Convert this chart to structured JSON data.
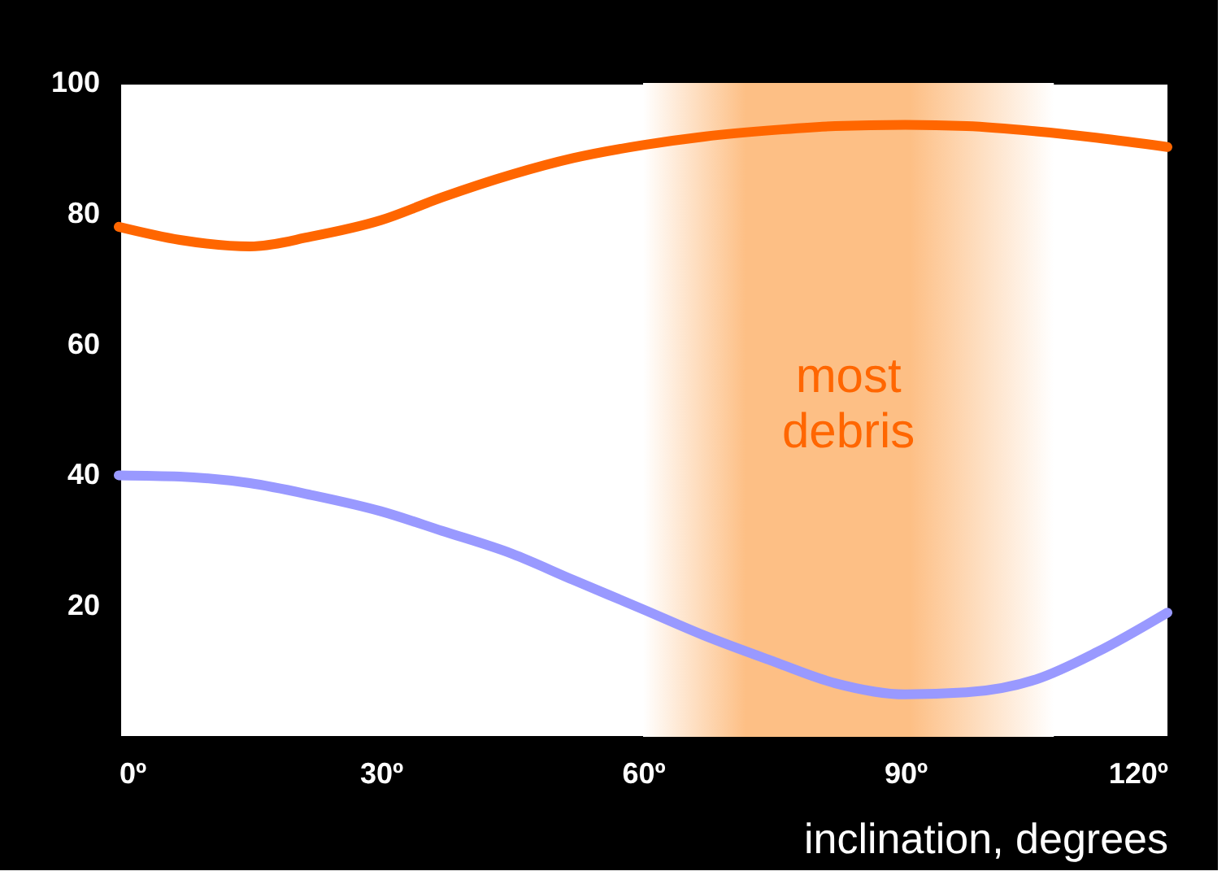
{
  "chart_data": {
    "type": "line",
    "xlabel": "inclination, degrees",
    "x": [
      0,
      7,
      15,
      22,
      30,
      37,
      45,
      52,
      60,
      67,
      75,
      82,
      90,
      97,
      105,
      112,
      120
    ],
    "series": [
      {
        "color": "#ff6600",
        "values": [
          78,
          76,
          75,
          76.5,
          79,
          82.5,
          86,
          88.5,
          90.5,
          91.8,
          92.8,
          93.4,
          93.6,
          93.4,
          92.6,
          91.6,
          90.2
        ]
      },
      {
        "color": "#9999ff",
        "values": [
          40,
          39.8,
          38.8,
          37,
          34.5,
          31.5,
          28,
          24,
          19.5,
          15.5,
          11.5,
          8.2,
          6.5,
          6.8,
          8.8,
          13,
          19
        ]
      }
    ],
    "xlim": [
      0,
      120
    ],
    "ylim": [
      0,
      100
    ],
    "xticks": [
      {
        "value": 0,
        "label": "0º"
      },
      {
        "value": 30,
        "label": "30º"
      },
      {
        "value": 60,
        "label": "60º"
      },
      {
        "value": 90,
        "label": "90º"
      },
      {
        "value": 120,
        "label": "120º"
      }
    ],
    "yticks": [
      20,
      40,
      60,
      80,
      100
    ],
    "bands": [
      {
        "axis": "x",
        "from": 60,
        "to": 107,
        "label": "most debris",
        "color": "#fdbf85"
      }
    ],
    "grid": false,
    "marker": "none",
    "line_style": "solid"
  }
}
